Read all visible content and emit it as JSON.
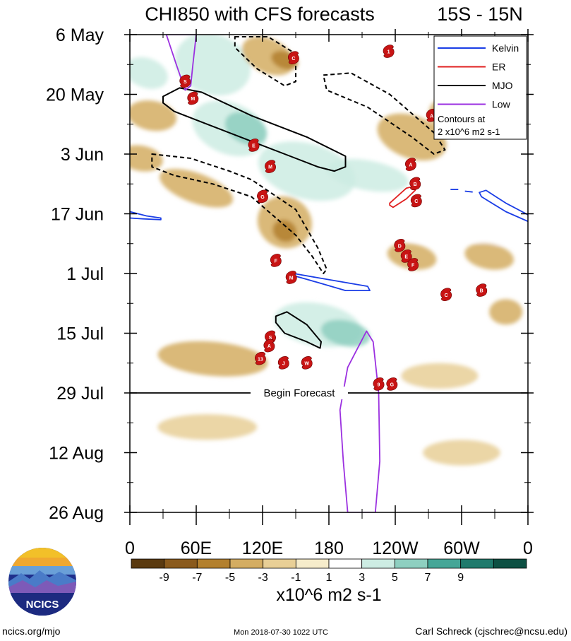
{
  "chart_data": {
    "type": "heatmap",
    "title": "CHI850 with CFS forecasts",
    "latitude_band": "15S - 15N",
    "y_tick_labels": [
      "6 May",
      "20 May",
      "3 Jun",
      "17 Jun",
      "1 Jul",
      "15 Jul",
      "29 Jul",
      "12 Aug",
      "26 Aug"
    ],
    "y_tick_days": [
      0,
      14,
      28,
      42,
      56,
      70,
      84,
      98,
      112
    ],
    "ylim_days": [
      0,
      112
    ],
    "x_tick_labels": [
      "0",
      "60E",
      "120E",
      "180",
      "120W",
      "60W",
      "0"
    ],
    "x_tick_lons": [
      0,
      60,
      120,
      180,
      240,
      300,
      360
    ],
    "xlim_lon": [
      0,
      360
    ],
    "colorbar": {
      "units": "x10^6 m2 s-1",
      "tick_labels": [
        "-9",
        "-7",
        "-5",
        "-3",
        "-1",
        "1",
        "3",
        "5",
        "7",
        "9"
      ],
      "levels": [
        -9,
        -7,
        -5,
        -3,
        -1,
        1,
        3,
        5,
        7,
        9
      ],
      "colors": [
        "#5a3a10",
        "#8a5a1c",
        "#b3802e",
        "#d4ad62",
        "#e8cf96",
        "#f6eccb",
        "#ffffff",
        "#cdece3",
        "#8ecfc0",
        "#45a697",
        "#1f7a6c",
        "#0d5043"
      ]
    },
    "forecast_start_label": "Begin Forecast",
    "forecast_start_day": 84,
    "legend": {
      "placement": "top-right",
      "items": [
        {
          "name": "Kelvin",
          "color": "#1a3de6"
        },
        {
          "name": "ER",
          "color": "#e02020"
        },
        {
          "name": "MJO",
          "color": "#000000"
        },
        {
          "name": "Low",
          "color": "#9b30e0"
        }
      ],
      "note_line1": "Contours at",
      "note_line2": "2 x10^6 m2 s-1"
    },
    "contours": [
      {
        "kind": "mjo",
        "sign": "positive",
        "points": [
          [
            30,
            14.5
          ],
          [
            45,
            12.5
          ],
          [
            65,
            13.5
          ],
          [
            110,
            19
          ],
          [
            160,
            24
          ],
          [
            195,
            28.5
          ],
          [
            195,
            31
          ],
          [
            185,
            32
          ],
          [
            170,
            31
          ],
          [
            150,
            29
          ],
          [
            110,
            25
          ],
          [
            70,
            21
          ],
          [
            40,
            18
          ],
          [
            30,
            16
          ]
        ]
      },
      {
        "kind": "mjo",
        "sign": "negative",
        "points": [
          [
            95,
            0.5
          ],
          [
            125,
            0.5
          ],
          [
            150,
            4.5
          ],
          [
            150,
            11
          ],
          [
            140,
            12
          ],
          [
            115,
            8
          ],
          [
            95,
            3
          ]
        ]
      },
      {
        "kind": "mjo",
        "sign": "negative",
        "points": [
          [
            175,
            9.5
          ],
          [
            200,
            9
          ],
          [
            235,
            14
          ],
          [
            275,
            23
          ],
          [
            285,
            27
          ],
          [
            275,
            28
          ],
          [
            255,
            24
          ],
          [
            215,
            17
          ],
          [
            178,
            13
          ]
        ]
      },
      {
        "kind": "mjo",
        "sign": "negative",
        "points": [
          [
            20,
            28
          ],
          [
            55,
            29
          ],
          [
            90,
            32
          ],
          [
            110,
            34
          ],
          [
            150,
            41
          ],
          [
            170,
            50
          ],
          [
            178,
            55
          ],
          [
            175,
            56
          ],
          [
            165,
            52
          ],
          [
            150,
            47
          ],
          [
            110,
            38
          ],
          [
            75,
            35
          ],
          [
            40,
            33
          ],
          [
            20,
            31
          ]
        ]
      },
      {
        "kind": "mjo",
        "sign": "positive",
        "points": [
          [
            132,
            66
          ],
          [
            142,
            65
          ],
          [
            160,
            68
          ],
          [
            173,
            72
          ],
          [
            172,
            73.5
          ],
          [
            160,
            72
          ],
          [
            140,
            70
          ],
          [
            132,
            67.5
          ]
        ]
      },
      {
        "kind": "kelvin",
        "points": [
          [
            148,
            56
          ],
          [
            170,
            57
          ],
          [
            215,
            59
          ],
          [
            217,
            60
          ],
          [
            195,
            60
          ],
          [
            162,
            57.5
          ],
          [
            148,
            56.5
          ]
        ]
      },
      {
        "kind": "kelvin",
        "points": [
          [
            322,
            36.5
          ],
          [
            340,
            39.5
          ],
          [
            362,
            42.5
          ],
          [
            362,
            44
          ],
          [
            340,
            41.5
          ],
          [
            318,
            38
          ],
          [
            316,
            37
          ]
        ]
      },
      {
        "kind": "kelvin",
        "points": [
          [
            0,
            41.5
          ],
          [
            15,
            42.5
          ],
          [
            28,
            43
          ],
          [
            28,
            43.4
          ],
          [
            12,
            43.2
          ],
          [
            0,
            43
          ]
        ]
      },
      {
        "kind": "kelvin",
        "points": [
          [
            290,
            36.3
          ],
          [
            297,
            36.3
          ]
        ]
      },
      {
        "kind": "kelvin",
        "points": [
          [
            303,
            36.7
          ],
          [
            310,
            36.9
          ]
        ]
      },
      {
        "kind": "er",
        "points": [
          [
            235,
            39.5
          ],
          [
            250,
            36
          ],
          [
            258,
            35.5
          ],
          [
            258,
            36.5
          ],
          [
            250,
            38.5
          ],
          [
            238,
            40.5
          ],
          [
            235,
            40
          ]
        ]
      },
      {
        "kind": "low",
        "points": [
          [
            33,
            0
          ],
          [
            42,
            7
          ],
          [
            50,
            13
          ],
          [
            55,
            12
          ],
          [
            57,
            7
          ],
          [
            60,
            0
          ]
        ]
      },
      {
        "kind": "low",
        "points": [
          [
            197,
            112
          ],
          [
            193,
            100
          ],
          [
            190,
            88
          ],
          [
            197,
            78
          ],
          [
            205,
            74
          ],
          [
            214,
            69.5
          ],
          [
            220,
            72
          ],
          [
            225,
            84
          ],
          [
            226,
            100
          ],
          [
            222,
            112
          ]
        ]
      }
    ],
    "storms": [
      {
        "label": "S",
        "lon": 50,
        "day": 11
      },
      {
        "label": "M",
        "lon": 57,
        "day": 15
      },
      {
        "label": "C",
        "lon": 148,
        "day": 5.5
      },
      {
        "label": "1",
        "lon": 234,
        "day": 4
      },
      {
        "label": "A",
        "lon": 273,
        "day": 19
      },
      {
        "label": "E",
        "lon": 112,
        "day": 26
      },
      {
        "label": "M",
        "lon": 127,
        "day": 31
      },
      {
        "label": "G",
        "lon": 120,
        "day": 38
      },
      {
        "label": "A",
        "lon": 254,
        "day": 30.5
      },
      {
        "label": "B",
        "lon": 258,
        "day": 35
      },
      {
        "label": "C",
        "lon": 259,
        "day": 39
      },
      {
        "label": "D",
        "lon": 244,
        "day": 49.5
      },
      {
        "label": "E",
        "lon": 250,
        "day": 52
      },
      {
        "label": "F",
        "lon": 256,
        "day": 54
      },
      {
        "label": "F",
        "lon": 132,
        "day": 53
      },
      {
        "label": "M",
        "lon": 146,
        "day": 57
      },
      {
        "label": "C",
        "lon": 286,
        "day": 61
      },
      {
        "label": "B",
        "lon": 318,
        "day": 60
      },
      {
        "label": "S",
        "lon": 127,
        "day": 71
      },
      {
        "label": "A",
        "lon": 126,
        "day": 73
      },
      {
        "label": "13",
        "lon": 118,
        "day": 76
      },
      {
        "label": "J",
        "lon": 139,
        "day": 77
      },
      {
        "label": "W",
        "lon": 160,
        "day": 77
      },
      {
        "label": "9",
        "lon": 225,
        "day": 82
      },
      {
        "label": "G",
        "lon": 237,
        "day": 82
      }
    ],
    "anomaly_patches": [
      {
        "lon": 75,
        "day": 7,
        "w": 70,
        "h": 14,
        "v": 4,
        "rot": 20
      },
      {
        "lon": 90,
        "day": 22,
        "w": 70,
        "h": 12,
        "v": 4,
        "rot": 22
      },
      {
        "lon": 105,
        "day": 22,
        "w": 40,
        "h": 7,
        "v": 6,
        "rot": 25
      },
      {
        "lon": 160,
        "day": 32,
        "w": 90,
        "h": 13,
        "v": 4,
        "rot": 15
      },
      {
        "lon": 215,
        "day": 33,
        "w": 75,
        "h": 7,
        "v": 5,
        "rot": 10
      },
      {
        "lon": 15,
        "day": 9,
        "w": 40,
        "h": 7,
        "v": 5,
        "rot": 20
      },
      {
        "lon": 20,
        "day": 45,
        "w": 45,
        "h": 6,
        "v": 3,
        "rot": 0
      },
      {
        "lon": 250,
        "day": 44,
        "w": 70,
        "h": 8,
        "v": 3,
        "rot": 15
      },
      {
        "lon": 320,
        "day": 45,
        "w": 60,
        "h": 8,
        "v": 3,
        "rot": 15
      },
      {
        "lon": 110,
        "day": 64,
        "w": 60,
        "h": 8,
        "v": 3,
        "rot": 10
      },
      {
        "lon": 170,
        "day": 68,
        "w": 80,
        "h": 10,
        "v": 4,
        "rot": 10
      },
      {
        "lon": 195,
        "day": 70,
        "w": 45,
        "h": 6,
        "v": 6,
        "rot": 12
      },
      {
        "lon": 210,
        "day": 82,
        "w": 110,
        "h": 9,
        "v": 3,
        "rot": 0
      },
      {
        "lon": 205,
        "day": 95,
        "w": 40,
        "h": 24,
        "v": 2,
        "rot": 0
      },
      {
        "lon": 150,
        "day": 104,
        "w": 100,
        "h": 7,
        "v": 2,
        "rot": 0
      },
      {
        "lon": 240,
        "day": 60,
        "w": 60,
        "h": 6,
        "v": 2,
        "rot": 10
      },
      {
        "lon": 290,
        "day": 70,
        "w": 50,
        "h": 6,
        "v": 2,
        "rot": 10
      },
      {
        "lon": 330,
        "day": 84,
        "w": 50,
        "h": 6,
        "v": 2,
        "rot": 0
      },
      {
        "lon": 125,
        "day": 5,
        "w": 50,
        "h": 8,
        "v": -4,
        "rot": 25
      },
      {
        "lon": 140,
        "day": 6,
        "w": 25,
        "h": 4,
        "v": -6,
        "rot": 20
      },
      {
        "lon": 60,
        "day": 36,
        "w": 70,
        "h": 7,
        "v": -3,
        "rot": 20
      },
      {
        "lon": 140,
        "day": 44,
        "w": 50,
        "h": 12,
        "v": -4,
        "rot": 28
      },
      {
        "lon": 140,
        "day": 46,
        "w": 22,
        "h": 5,
        "v": -6,
        "rot": 28
      },
      {
        "lon": 255,
        "day": 24,
        "w": 65,
        "h": 10,
        "v": -3,
        "rot": 20
      },
      {
        "lon": 290,
        "day": 19,
        "w": 40,
        "h": 8,
        "v": -3,
        "rot": 20
      },
      {
        "lon": 20,
        "day": 19,
        "w": 45,
        "h": 7,
        "v": -3,
        "rot": 10
      },
      {
        "lon": 10,
        "day": 29,
        "w": 40,
        "h": 6,
        "v": -3,
        "rot": 10
      },
      {
        "lon": 255,
        "day": 52,
        "w": 45,
        "h": 6,
        "v": -3,
        "rot": 10
      },
      {
        "lon": 325,
        "day": 52,
        "w": 45,
        "h": 6,
        "v": -3,
        "rot": 10
      },
      {
        "lon": 75,
        "day": 76,
        "w": 100,
        "h": 8,
        "v": -3,
        "rot": 5
      },
      {
        "lon": 70,
        "day": 92,
        "w": 90,
        "h": 6,
        "v": -2,
        "rot": 0
      },
      {
        "lon": 280,
        "day": 80,
        "w": 70,
        "h": 6,
        "v": -2,
        "rot": 0
      },
      {
        "lon": 300,
        "day": 98,
        "w": 70,
        "h": 6,
        "v": -2,
        "rot": 0
      },
      {
        "lon": 340,
        "day": 65,
        "w": 30,
        "h": 6,
        "v": -3,
        "rot": 0
      }
    ]
  },
  "footer": {
    "logo_text": "NCICS",
    "site": "ncics.org/mjo",
    "timestamp": "Mon 2018-07-30 1022 UTC",
    "credit": "Carl Schreck (cjschrec@ncsu.edu)"
  }
}
